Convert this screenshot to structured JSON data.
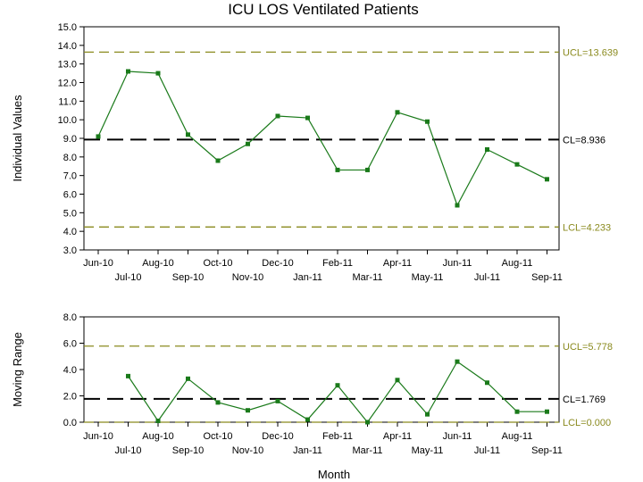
{
  "title": "ICU LOS Ventilated Patients",
  "xlabel": "Month",
  "colors": {
    "series": "#1a7a1a",
    "limit": "#8a8a1e",
    "center": "#000000"
  },
  "chart_data": [
    {
      "type": "line",
      "name": "individuals-chart",
      "ylabel": "Individual Values",
      "ylim": [
        3.0,
        15.0
      ],
      "ytick_step": 1.0,
      "categories": [
        "Jun-10",
        "Jul-10",
        "Aug-10",
        "Sep-10",
        "Oct-10",
        "Nov-10",
        "Dec-10",
        "Jan-11",
        "Feb-11",
        "Mar-11",
        "Apr-11",
        "May-11",
        "Jun-11",
        "Jul-11",
        "Aug-11",
        "Sep-11"
      ],
      "series": [
        {
          "values": [
            9.1,
            12.6,
            12.5,
            9.2,
            7.8,
            8.7,
            10.2,
            10.1,
            7.3,
            7.3,
            10.4,
            9.9,
            5.4,
            8.4,
            7.6,
            6.8
          ]
        }
      ],
      "limits": {
        "ucl": {
          "value": 13.639,
          "label": "UCL=13.639"
        },
        "cl": {
          "value": 8.936,
          "label": "CL=8.936"
        },
        "lcl": {
          "value": 4.233,
          "label": "LCL=4.233"
        }
      }
    },
    {
      "type": "line",
      "name": "moving-range-chart",
      "ylabel": "Moving Range",
      "ylim": [
        0.0,
        8.0
      ],
      "ytick_step": 2.0,
      "categories": [
        "Jun-10",
        "Jul-10",
        "Aug-10",
        "Sep-10",
        "Oct-10",
        "Nov-10",
        "Dec-10",
        "Jan-11",
        "Feb-11",
        "Mar-11",
        "Apr-11",
        "May-11",
        "Jun-11",
        "Jul-11",
        "Aug-11",
        "Sep-11"
      ],
      "series": [
        {
          "values": [
            null,
            3.5,
            0.1,
            3.3,
            1.5,
            0.9,
            1.6,
            0.2,
            2.8,
            0.0,
            3.2,
            0.6,
            4.6,
            3.0,
            0.8,
            0.8
          ]
        }
      ],
      "limits": {
        "ucl": {
          "value": 5.778,
          "label": "UCL=5.778"
        },
        "cl": {
          "value": 1.769,
          "label": "CL=1.769"
        },
        "lcl": {
          "value": 0.0,
          "label": "LCL=0.000"
        }
      }
    }
  ]
}
